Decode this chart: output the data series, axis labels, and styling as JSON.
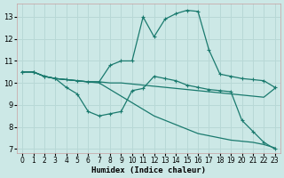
{
  "xlabel": "Humidex (Indice chaleur)",
  "bg_color": "#cce8e6",
  "grid_color": "#b8d8d6",
  "line_color": "#1a7a6e",
  "xlim": [
    -0.5,
    23.5
  ],
  "ylim": [
    6.8,
    13.6
  ],
  "yticks": [
    7,
    8,
    9,
    10,
    11,
    12,
    13
  ],
  "xticks": [
    0,
    1,
    2,
    3,
    4,
    5,
    6,
    7,
    8,
    9,
    10,
    11,
    12,
    13,
    14,
    15,
    16,
    17,
    18,
    19,
    20,
    21,
    22,
    23
  ],
  "series": [
    {
      "x": [
        0,
        1,
        2,
        3,
        4,
        5,
        6,
        7,
        8,
        9,
        10,
        11,
        12,
        13,
        14,
        15,
        16,
        17,
        18,
        19,
        20,
        21,
        22,
        23
      ],
      "y": [
        10.5,
        10.5,
        10.3,
        10.2,
        10.15,
        10.1,
        10.05,
        10.05,
        10.8,
        11.0,
        11.0,
        13.0,
        12.1,
        12.9,
        13.15,
        13.3,
        13.25,
        11.5,
        10.4,
        10.3,
        10.2,
        10.15,
        10.1,
        9.8
      ],
      "marker": true
    },
    {
      "x": [
        0,
        1,
        2,
        3,
        4,
        5,
        6,
        7,
        8,
        9,
        10,
        11,
        12,
        13,
        14,
        15,
        16,
        17,
        18,
        19,
        20,
        21,
        22,
        23
      ],
      "y": [
        10.5,
        10.5,
        10.3,
        10.2,
        10.15,
        10.1,
        10.05,
        10.05,
        10.0,
        10.0,
        9.95,
        9.9,
        9.85,
        9.8,
        9.75,
        9.7,
        9.65,
        9.6,
        9.55,
        9.5,
        9.45,
        9.4,
        9.35,
        9.75
      ],
      "marker": false
    },
    {
      "x": [
        0,
        1,
        2,
        3,
        4,
        5,
        6,
        7,
        8,
        9,
        10,
        11,
        12,
        13,
        14,
        15,
        16,
        17,
        18,
        19,
        20,
        21,
        22,
        23
      ],
      "y": [
        10.5,
        10.5,
        10.3,
        10.2,
        10.15,
        10.1,
        10.05,
        10.0,
        9.7,
        9.4,
        9.1,
        8.8,
        8.5,
        8.3,
        8.1,
        7.9,
        7.7,
        7.6,
        7.5,
        7.4,
        7.35,
        7.3,
        7.2,
        7.05
      ],
      "marker": false
    },
    {
      "x": [
        0,
        1,
        2,
        3,
        4,
        5,
        6,
        7,
        8,
        9,
        10,
        11,
        12,
        13,
        14,
        15,
        16,
        17,
        18,
        19,
        20,
        21,
        22,
        23
      ],
      "y": [
        10.5,
        10.5,
        10.3,
        10.2,
        9.8,
        9.5,
        8.7,
        8.5,
        8.6,
        8.7,
        9.65,
        9.75,
        10.3,
        10.2,
        10.1,
        9.9,
        9.8,
        9.7,
        9.65,
        9.6,
        8.3,
        7.8,
        7.3,
        7.0
      ],
      "marker": true
    }
  ]
}
